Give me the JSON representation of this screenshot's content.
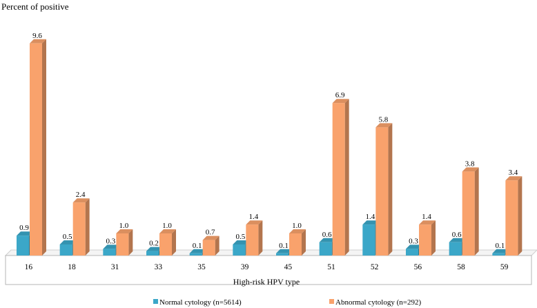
{
  "chart_data": {
    "type": "bar",
    "style": "3d-clustered-column",
    "ylabel": "Percent of positive",
    "xlabel": "High-risk HPV type",
    "categories": [
      "16",
      "18",
      "31",
      "33",
      "35",
      "39",
      "45",
      "51",
      "52",
      "56",
      "58",
      "59"
    ],
    "series": [
      {
        "name": "Normal cytology (n=5614)",
        "color": "#3BA7C8",
        "values": [
          0.9,
          0.5,
          0.3,
          0.2,
          0.1,
          0.5,
          0.1,
          0.6,
          1.4,
          0.3,
          0.6,
          0.1
        ],
        "labels": [
          "0.9",
          "0.5",
          "0.3",
          "0.2",
          "0.1",
          "0.5",
          "0.1",
          "0.6",
          "1.4",
          "0.3",
          "0.6",
          "0.1"
        ]
      },
      {
        "name": "Abnormal cytology (n=292)",
        "color": "#F9A26C",
        "values": [
          9.6,
          2.4,
          1.0,
          1.0,
          0.7,
          1.4,
          1.0,
          6.9,
          5.8,
          1.4,
          3.8,
          3.4
        ],
        "labels": [
          "9.6",
          "2.4",
          "1.0",
          "1.0",
          "0.7",
          "1.4",
          "1.0",
          "6.9",
          "5.8",
          "1.4",
          "3.8",
          "3.4"
        ]
      }
    ],
    "ylim": [
      0,
      10
    ],
    "grid": false,
    "legend": "bottom"
  }
}
